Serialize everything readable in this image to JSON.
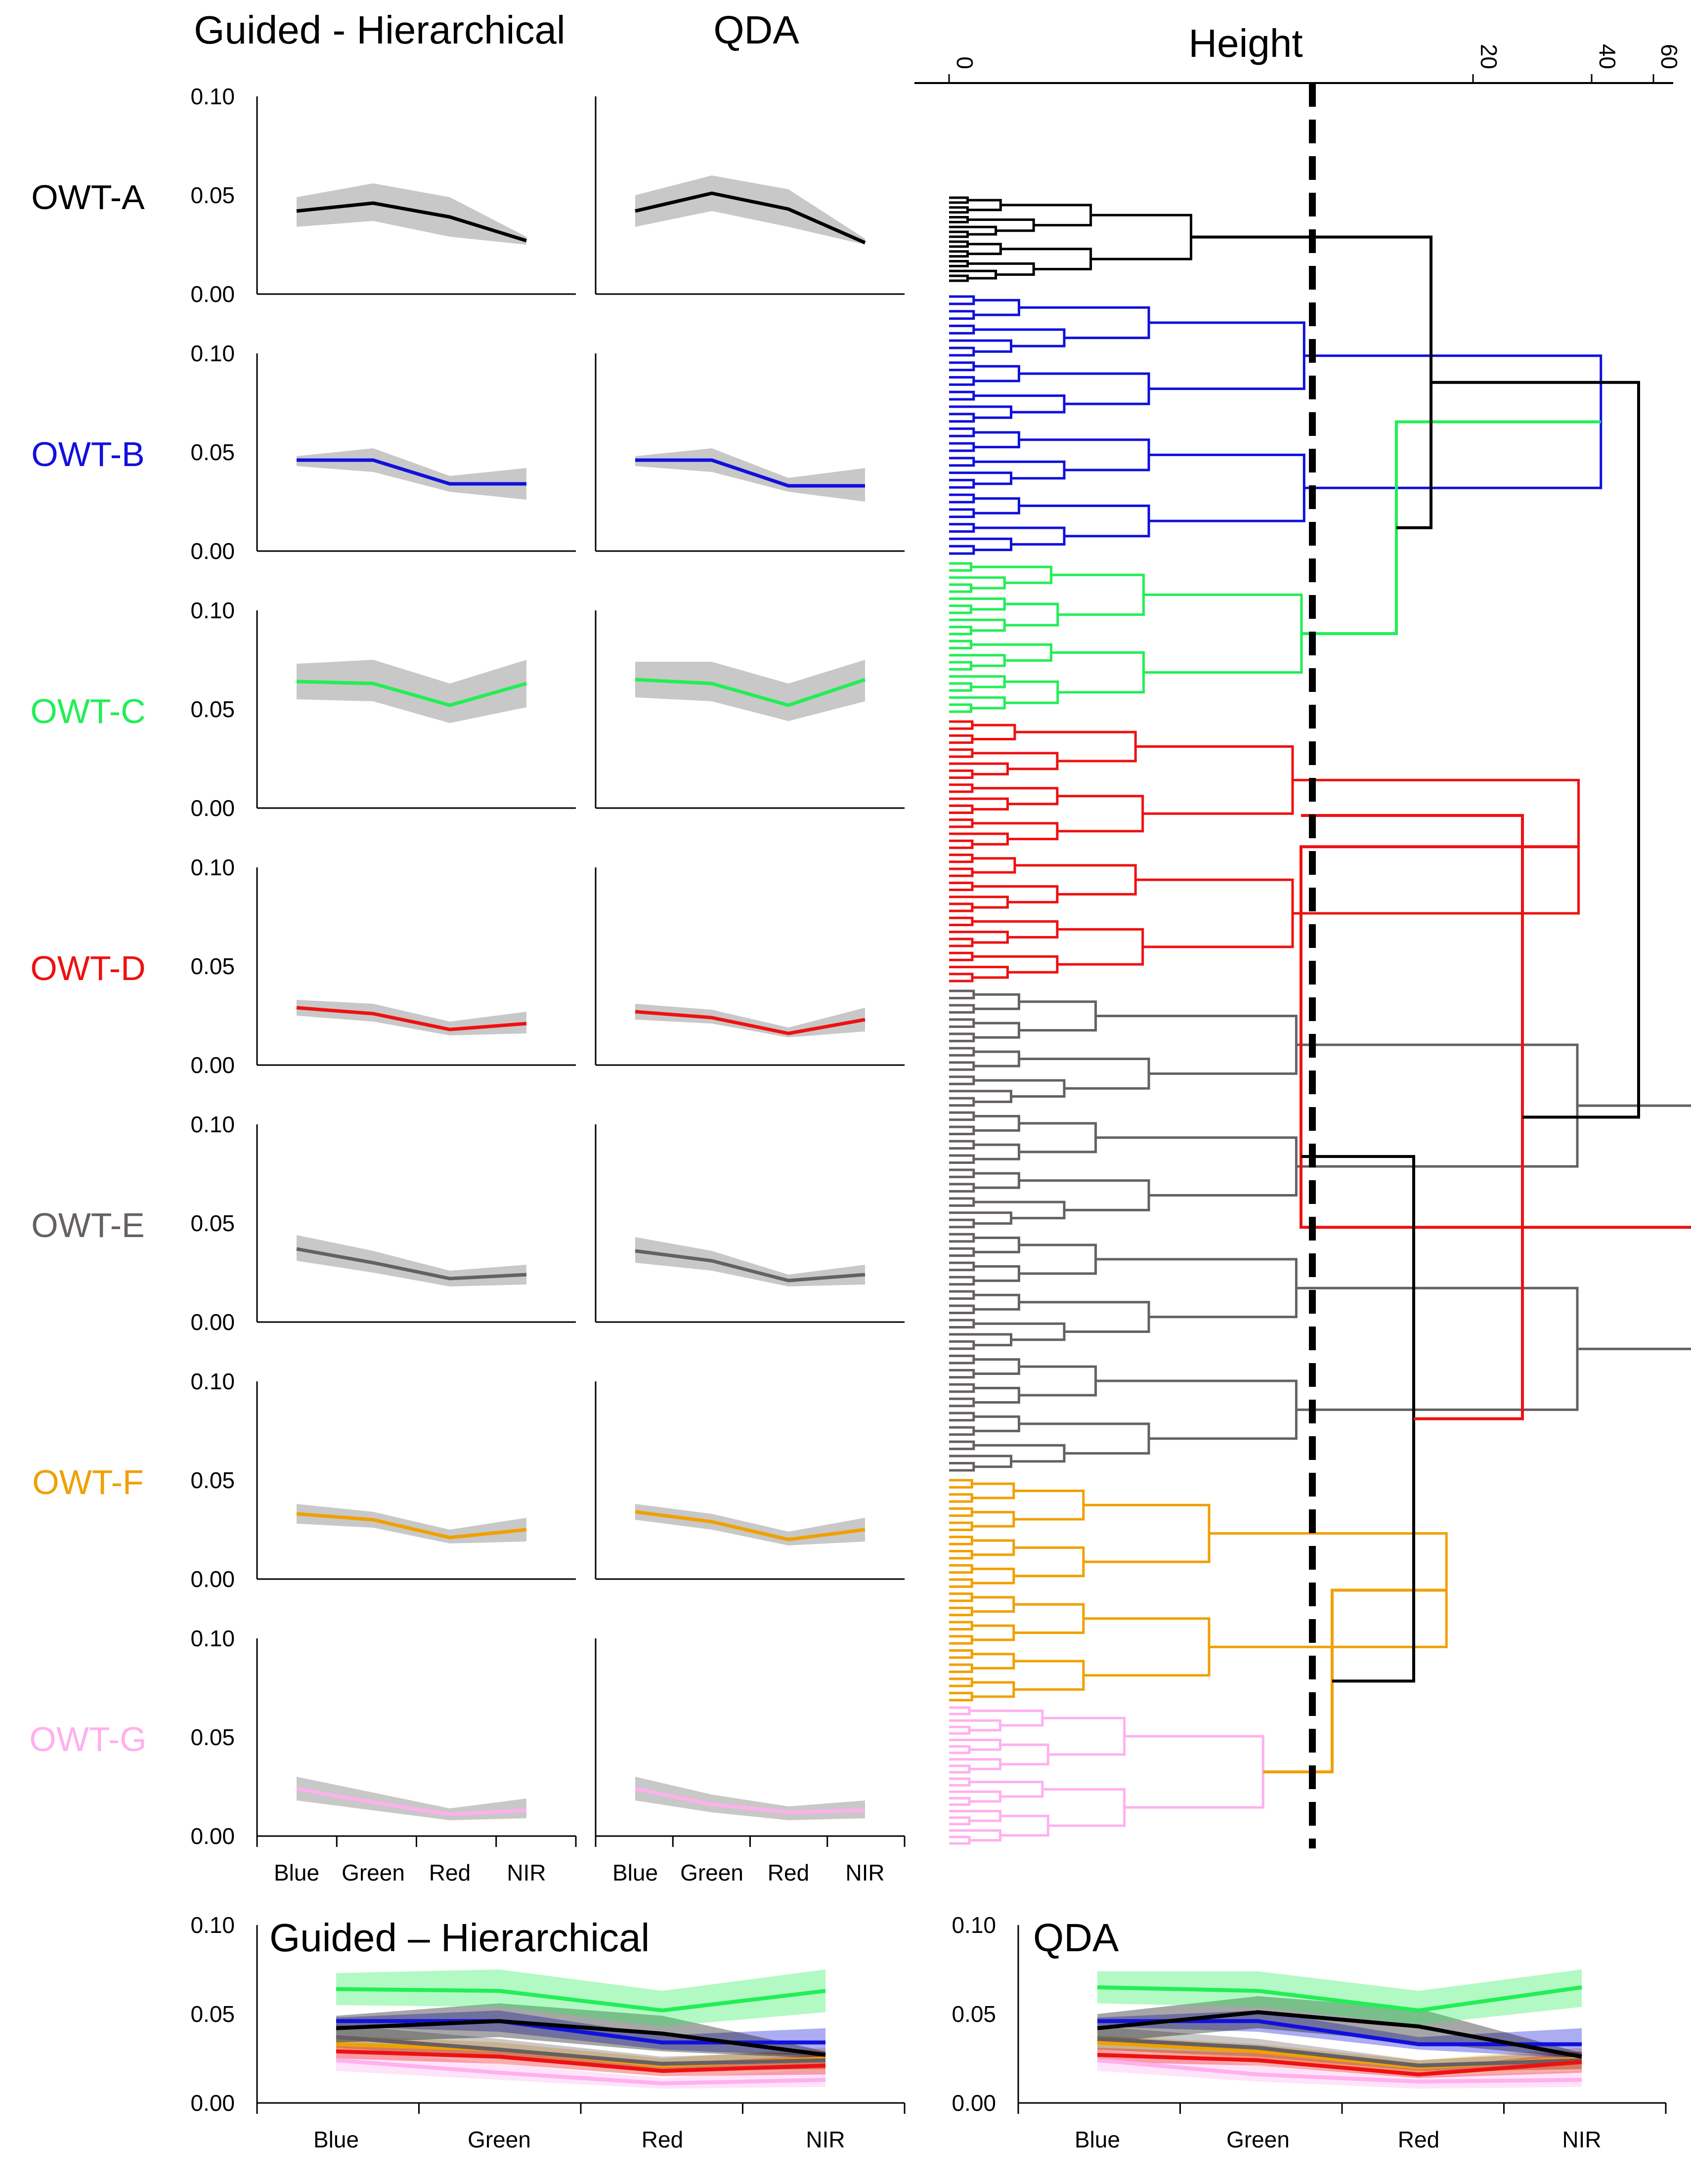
{
  "colors": {
    "OWT-A": "#000000",
    "OWT-B": "#1010dd",
    "OWT-C": "#22ee55",
    "OWT-D": "#ee1111",
    "OWT-E": "#666065",
    "OWT-F": "#f0a000",
    "OWT-G": "#ffb0ee",
    "band": "#c8c8c8"
  },
  "headers": {
    "guided": "Guided - Hierarchical",
    "qda": "QDA"
  },
  "dendrogram": {
    "axis_title": "Height",
    "tick_labels": [
      "0",
      "20",
      "40",
      "60"
    ],
    "cut_height": 12
  },
  "chart_data": [
    {
      "type": "line",
      "title": "Guided - Hierarchical",
      "categories": [
        "Blue",
        "Green",
        "Red",
        "NIR"
      ],
      "ylim": [
        0,
        0.1
      ],
      "yticks": [
        "0.10",
        "0.05",
        "0.00"
      ],
      "series": [
        {
          "name": "OWT-A",
          "values": [
            0.042,
            0.046,
            0.039,
            0.027
          ],
          "lower": [
            0.034,
            0.037,
            0.029,
            0.025
          ],
          "upper": [
            0.049,
            0.056,
            0.049,
            0.029
          ]
        },
        {
          "name": "OWT-B",
          "values": [
            0.046,
            0.046,
            0.034,
            0.034
          ],
          "lower": [
            0.043,
            0.04,
            0.03,
            0.026
          ],
          "upper": [
            0.048,
            0.052,
            0.038,
            0.042
          ]
        },
        {
          "name": "OWT-C",
          "values": [
            0.064,
            0.063,
            0.052,
            0.063
          ],
          "lower": [
            0.055,
            0.054,
            0.043,
            0.051
          ],
          "upper": [
            0.073,
            0.075,
            0.063,
            0.075
          ]
        },
        {
          "name": "OWT-D",
          "values": [
            0.029,
            0.026,
            0.018,
            0.021
          ],
          "lower": [
            0.025,
            0.022,
            0.015,
            0.016
          ],
          "upper": [
            0.033,
            0.031,
            0.022,
            0.027
          ]
        },
        {
          "name": "OWT-E",
          "values": [
            0.037,
            0.03,
            0.022,
            0.024
          ],
          "lower": [
            0.031,
            0.025,
            0.018,
            0.019
          ],
          "upper": [
            0.044,
            0.036,
            0.026,
            0.029
          ]
        },
        {
          "name": "OWT-F",
          "values": [
            0.033,
            0.03,
            0.021,
            0.025
          ],
          "lower": [
            0.028,
            0.026,
            0.018,
            0.019
          ],
          "upper": [
            0.038,
            0.034,
            0.025,
            0.031
          ]
        },
        {
          "name": "OWT-G",
          "values": [
            0.024,
            0.017,
            0.011,
            0.013
          ],
          "lower": [
            0.018,
            0.013,
            0.008,
            0.009
          ],
          "upper": [
            0.03,
            0.022,
            0.014,
            0.019
          ]
        }
      ]
    },
    {
      "type": "line",
      "title": "QDA",
      "categories": [
        "Blue",
        "Green",
        "Red",
        "NIR"
      ],
      "ylim": [
        0,
        0.1
      ],
      "yticks": [
        "0.10",
        "0.05",
        "0.00"
      ],
      "series": [
        {
          "name": "OWT-A",
          "values": [
            0.042,
            0.051,
            0.043,
            0.026
          ],
          "lower": [
            0.034,
            0.042,
            0.034,
            0.025
          ],
          "upper": [
            0.05,
            0.06,
            0.053,
            0.028
          ]
        },
        {
          "name": "OWT-B",
          "values": [
            0.046,
            0.046,
            0.033,
            0.033
          ],
          "lower": [
            0.043,
            0.04,
            0.03,
            0.025
          ],
          "upper": [
            0.048,
            0.052,
            0.037,
            0.042
          ]
        },
        {
          "name": "OWT-C",
          "values": [
            0.065,
            0.063,
            0.052,
            0.065
          ],
          "lower": [
            0.056,
            0.054,
            0.044,
            0.054
          ],
          "upper": [
            0.074,
            0.074,
            0.063,
            0.075
          ]
        },
        {
          "name": "OWT-D",
          "values": [
            0.027,
            0.024,
            0.016,
            0.023
          ],
          "lower": [
            0.023,
            0.021,
            0.014,
            0.017
          ],
          "upper": [
            0.031,
            0.028,
            0.019,
            0.029
          ]
        },
        {
          "name": "OWT-E",
          "values": [
            0.036,
            0.031,
            0.021,
            0.024
          ],
          "lower": [
            0.03,
            0.026,
            0.018,
            0.019
          ],
          "upper": [
            0.043,
            0.036,
            0.024,
            0.029
          ]
        },
        {
          "name": "OWT-F",
          "values": [
            0.034,
            0.029,
            0.02,
            0.025
          ],
          "lower": [
            0.03,
            0.025,
            0.017,
            0.019
          ],
          "upper": [
            0.038,
            0.033,
            0.024,
            0.031
          ]
        },
        {
          "name": "OWT-G",
          "values": [
            0.024,
            0.016,
            0.012,
            0.013
          ],
          "lower": [
            0.018,
            0.012,
            0.008,
            0.009
          ],
          "upper": [
            0.03,
            0.021,
            0.015,
            0.018
          ]
        }
      ]
    }
  ],
  "bottom": {
    "guided_title": "Guided – Hierarchical",
    "qda_title": "QDA"
  }
}
